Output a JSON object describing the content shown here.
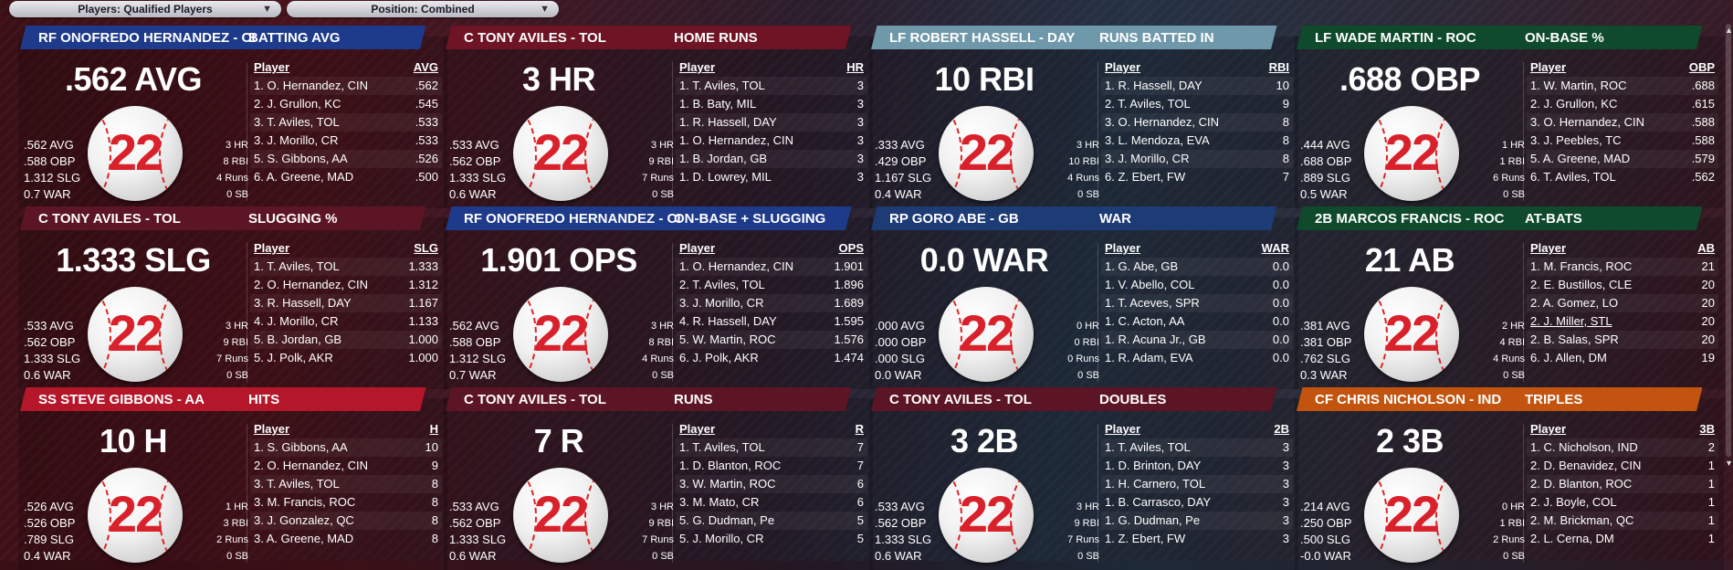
{
  "filters": [
    {
      "label": "Players: Qualified Players"
    },
    {
      "label": "Position: Combined"
    }
  ],
  "icons": {
    "dropdown": "chevron-down-icon",
    "scroll_up": "triangle-up-icon",
    "scroll_down": "triangle-down-icon"
  },
  "ball_number": "22",
  "cards": [
    {
      "band_color": "#1e3a8a",
      "title": "RF ONOFREDO HERNANDEZ - CIN",
      "category": "BATTING AVG",
      "big_stat": ".562 AVG",
      "left_stats": [
        ".562 AVG",
        ".588 OBP",
        "1.312 SLG",
        "0.7 WAR"
      ],
      "right_stats": [
        "3 HR",
        "8 RBI",
        "4 Runs",
        "0 SB"
      ],
      "col_player": "Player",
      "col_stat": "AVG",
      "rows": [
        {
          "name": "1. O. Hernandez, CIN",
          "val": ".562"
        },
        {
          "name": "2. J. Grullon, KC",
          "val": ".545"
        },
        {
          "name": "3. T. Aviles, TOL",
          "val": ".533"
        },
        {
          "name": "3. J. Morillo, CR",
          "val": ".533"
        },
        {
          "name": "5. S. Gibbons, AA",
          "val": ".526"
        },
        {
          "name": "6. A. Greene, MAD",
          "val": ".500"
        }
      ]
    },
    {
      "band_color": "#6e1424",
      "title": "C TONY AVILES - TOL",
      "category": "HOME RUNS",
      "big_stat": "3 HR",
      "left_stats": [
        ".533 AVG",
        ".562 OBP",
        "1.333 SLG",
        "0.6 WAR"
      ],
      "right_stats": [
        "3 HR",
        "9 RBI",
        "7 Runs",
        "0 SB"
      ],
      "col_player": "Player",
      "col_stat": "HR",
      "rows": [
        {
          "name": "1. T. Aviles, TOL",
          "val": "3"
        },
        {
          "name": "1. B. Baty, MIL",
          "val": "3"
        },
        {
          "name": "1. R. Hassell, DAY",
          "val": "3"
        },
        {
          "name": "1. O. Hernandez, CIN",
          "val": "3"
        },
        {
          "name": "1. B. Jordan, GB",
          "val": "3"
        },
        {
          "name": "1. D. Lowrey, MIL",
          "val": "3"
        }
      ]
    },
    {
      "band_color": "#6f98aa",
      "title": "LF ROBERT HASSELL - DAY",
      "category": "RUNS BATTED IN",
      "big_stat": "10 RBI",
      "left_stats": [
        ".333 AVG",
        ".429 OBP",
        "1.167 SLG",
        "0.4 WAR"
      ],
      "right_stats": [
        "3 HR",
        "10 RBI",
        "4 Runs",
        "0 SB"
      ],
      "col_player": "Player",
      "col_stat": "RBI",
      "rows": [
        {
          "name": "1. R. Hassell, DAY",
          "val": "10"
        },
        {
          "name": "2. T. Aviles, TOL",
          "val": "9"
        },
        {
          "name": "3. O. Hernandez, CIN",
          "val": "8"
        },
        {
          "name": "3. L. Mendoza, EVA",
          "val": "8"
        },
        {
          "name": "3. J. Morillo, CR",
          "val": "8"
        },
        {
          "name": "6. Z. Ebert, FW",
          "val": "7"
        }
      ]
    },
    {
      "band_color": "#0f4a2c",
      "title": "LF WADE MARTIN - ROC",
      "category": "ON-BASE %",
      "big_stat": ".688 OBP",
      "left_stats": [
        ".444 AVG",
        ".688 OBP",
        ".889 SLG",
        "0.5 WAR"
      ],
      "right_stats": [
        "1 HR",
        "1 RBI",
        "6 Runs",
        "0 SB"
      ],
      "col_player": "Player",
      "col_stat": "OBP",
      "rows": [
        {
          "name": "1. W. Martin, ROC",
          "val": ".688"
        },
        {
          "name": "2. J. Grullon, KC",
          "val": ".615"
        },
        {
          "name": "3. O. Hernandez, CIN",
          "val": ".588"
        },
        {
          "name": "3. J. Peebles, TC",
          "val": ".588"
        },
        {
          "name": "5. A. Greene, MAD",
          "val": ".579"
        },
        {
          "name": "6. T. Aviles, TOL",
          "val": ".562"
        }
      ]
    },
    {
      "band_color": "#5c1524",
      "title": "C TONY AVILES - TOL",
      "category": "SLUGGING %",
      "big_stat": "1.333 SLG",
      "left_stats": [
        ".533 AVG",
        ".562 OBP",
        "1.333 SLG",
        "0.6 WAR"
      ],
      "right_stats": [
        "3 HR",
        "9 RBI",
        "7 Runs",
        "0 SB"
      ],
      "col_player": "Player",
      "col_stat": "SLG",
      "rows": [
        {
          "name": "1. T. Aviles, TOL",
          "val": "1.333"
        },
        {
          "name": "2. O. Hernandez, CIN",
          "val": "1.312"
        },
        {
          "name": "3. R. Hassell, DAY",
          "val": "1.167"
        },
        {
          "name": "4. J. Morillo, CR",
          "val": "1.133"
        },
        {
          "name": "5. B. Jordan, GB",
          "val": "1.000"
        },
        {
          "name": "5. J. Polk, AKR",
          "val": "1.000"
        }
      ]
    },
    {
      "band_color": "#1e3a8a",
      "title": "RF ONOFREDO HERNANDEZ - CIN",
      "category": "ON-BASE + SLUGGING",
      "big_stat": "1.901 OPS",
      "left_stats": [
        ".562 AVG",
        ".588 OBP",
        "1.312 SLG",
        "0.7 WAR"
      ],
      "right_stats": [
        "3 HR",
        "8 RBI",
        "4 Runs",
        "0 SB"
      ],
      "col_player": "Player",
      "col_stat": "OPS",
      "rows": [
        {
          "name": "1. O. Hernandez, CIN",
          "val": "1.901"
        },
        {
          "name": "2. T. Aviles, TOL",
          "val": "1.896"
        },
        {
          "name": "3. J. Morillo, CR",
          "val": "1.689"
        },
        {
          "name": "4. R. Hassell, DAY",
          "val": "1.595"
        },
        {
          "name": "5. W. Martin, ROC",
          "val": "1.576"
        },
        {
          "name": "6. J. Polk, AKR",
          "val": "1.474"
        }
      ]
    },
    {
      "band_color": "#1d3b75",
      "title": "RP GORO ABE - GB",
      "category": "WAR",
      "big_stat": "0.0 WAR",
      "left_stats": [
        ".000 AVG",
        ".000 OBP",
        ".000 SLG",
        "0.0 WAR"
      ],
      "right_stats": [
        "0 HR",
        "0 RBI",
        "0 Runs",
        "0 SB"
      ],
      "col_player": "Player",
      "col_stat": "WAR",
      "rows": [
        {
          "name": "1. G. Abe, GB",
          "val": "0.0"
        },
        {
          "name": "1. V. Abello, COL",
          "val": "0.0"
        },
        {
          "name": "1. T. Aceves, SPR",
          "val": "0.0"
        },
        {
          "name": "1. C. Acton, AA",
          "val": "0.0"
        },
        {
          "name": "1. R. Acuna Jr., GB",
          "val": "0.0"
        },
        {
          "name": "1. R. Adam, EVA",
          "val": "0.0"
        }
      ]
    },
    {
      "band_color": "#0f4a2c",
      "title": "2B MARCOS FRANCIS - ROC",
      "category": "AT-BATS",
      "big_stat": "21 AB",
      "left_stats": [
        ".381 AVG",
        ".381 OBP",
        ".762 SLG",
        "0.3 WAR"
      ],
      "right_stats": [
        "2 HR",
        "4 RBI",
        "4 Runs",
        "0 SB"
      ],
      "col_player": "Player",
      "col_stat": "AB",
      "rows": [
        {
          "name": "1. M. Francis, ROC",
          "val": "21"
        },
        {
          "name": "2. E. Bustillos, CLE",
          "val": "20"
        },
        {
          "name": "2. A. Gomez, LO",
          "val": "20"
        },
        {
          "name": "2. J. Miller, STL",
          "val": "20",
          "underline": true
        },
        {
          "name": "2. B. Salas, SPR",
          "val": "20"
        },
        {
          "name": "6. J. Allen, DM",
          "val": "19"
        }
      ]
    },
    {
      "band_color": "#b4172a",
      "title": "SS STEVE GIBBONS - AA",
      "category": "HITS",
      "big_stat": "10 H",
      "left_stats": [
        ".526 AVG",
        ".526 OBP",
        ".789 SLG",
        "0.4 WAR"
      ],
      "right_stats": [
        "1 HR",
        "3 RBI",
        "2 Runs",
        "0 SB"
      ],
      "col_player": "Player",
      "col_stat": "H",
      "rows": [
        {
          "name": "1. S. Gibbons, AA",
          "val": "10"
        },
        {
          "name": "2. O. Hernandez, CIN",
          "val": "9"
        },
        {
          "name": "3. T. Aviles, TOL",
          "val": "8"
        },
        {
          "name": "3. M. Francis, ROC",
          "val": "8"
        },
        {
          "name": "3. J. Gonzalez, QC",
          "val": "8"
        },
        {
          "name": "3. A. Greene, MAD",
          "val": "8"
        }
      ]
    },
    {
      "band_color": "#5c1524",
      "title": "C TONY AVILES - TOL",
      "category": "RUNS",
      "big_stat": "7 R",
      "left_stats": [
        ".533 AVG",
        ".562 OBP",
        "1.333 SLG",
        "0.6 WAR"
      ],
      "right_stats": [
        "3 HR",
        "9 RBI",
        "7 Runs",
        "0 SB"
      ],
      "col_player": "Player",
      "col_stat": "R",
      "rows": [
        {
          "name": "1. T. Aviles, TOL",
          "val": "7"
        },
        {
          "name": "1. D. Blanton, ROC",
          "val": "7"
        },
        {
          "name": "3. W. Martin, ROC",
          "val": "6"
        },
        {
          "name": "3. M. Mato, CR",
          "val": "6"
        },
        {
          "name": "5. G. Dudman, Pe",
          "val": "5"
        },
        {
          "name": "5. J. Morillo, CR",
          "val": "5"
        }
      ]
    },
    {
      "band_color": "#5c1524",
      "title": "C TONY AVILES - TOL",
      "category": "DOUBLES",
      "big_stat": "3 2B",
      "left_stats": [
        ".533 AVG",
        ".562 OBP",
        "1.333 SLG",
        "0.6 WAR"
      ],
      "right_stats": [
        "3 HR",
        "9 RBI",
        "7 Runs",
        "0 SB"
      ],
      "col_player": "Player",
      "col_stat": "2B",
      "rows": [
        {
          "name": "1. T. Aviles, TOL",
          "val": "3"
        },
        {
          "name": "1. D. Brinton, DAY",
          "val": "3"
        },
        {
          "name": "1. H. Carnero, TOL",
          "val": "3"
        },
        {
          "name": "1. B. Carrasco, DAY",
          "val": "3"
        },
        {
          "name": "1. G. Dudman, Pe",
          "val": "3"
        },
        {
          "name": "1. Z. Ebert, FW",
          "val": "3"
        }
      ]
    },
    {
      "band_color": "#c2540f",
      "title": "CF CHRIS NICHOLSON - IND",
      "category": "TRIPLES",
      "big_stat": "2 3B",
      "left_stats": [
        ".214 AVG",
        ".250 OBP",
        ".500 SLG",
        "-0.0 WAR"
      ],
      "right_stats": [
        "0 HR",
        "1 RBI",
        "2 Runs",
        "0 SB"
      ],
      "col_player": "Player",
      "col_stat": "3B",
      "rows": [
        {
          "name": "1. C. Nicholson, IND",
          "val": "2"
        },
        {
          "name": "2. D. Benavidez, CIN",
          "val": "1"
        },
        {
          "name": "2. D. Blanton, ROC",
          "val": "1"
        },
        {
          "name": "2. J. Boyle, COL",
          "val": "1"
        },
        {
          "name": "2. M. Brickman, QC",
          "val": "1"
        },
        {
          "name": "2. L. Cerna, DM",
          "val": "1"
        }
      ]
    }
  ]
}
